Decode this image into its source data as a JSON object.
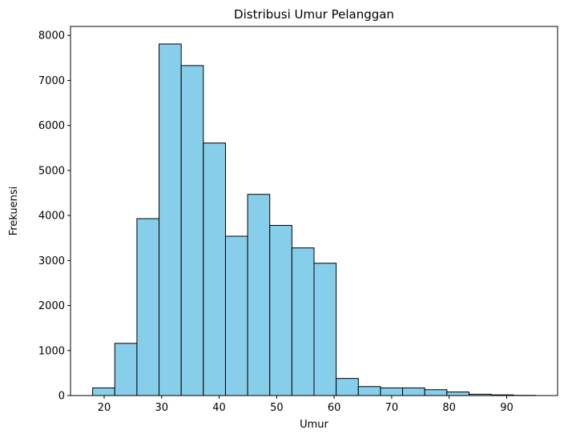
{
  "chart_data": {
    "type": "bar",
    "title": "Distribusi Umur Pelanggan",
    "xlabel": "Umur",
    "ylabel": "Frekuensi",
    "bin_edges": [
      18,
      21.85,
      25.7,
      29.55,
      33.4,
      37.25,
      41.1,
      44.95,
      48.8,
      52.65,
      56.5,
      60.35,
      64.2,
      68.05,
      71.9,
      75.75,
      79.6,
      83.45,
      87.3,
      91.15,
      95
    ],
    "values": [
      170,
      1160,
      3930,
      7810,
      7330,
      5610,
      3540,
      4470,
      3780,
      3280,
      2940,
      380,
      200,
      170,
      170,
      130,
      80,
      30,
      15,
      5
    ],
    "xlim": [
      14.15,
      98.85
    ],
    "ylim": [
      0,
      8200
    ],
    "x_ticks": [
      20,
      30,
      40,
      50,
      60,
      70,
      80,
      90
    ],
    "y_ticks": [
      0,
      1000,
      2000,
      3000,
      4000,
      5000,
      6000,
      7000,
      8000
    ],
    "bar_color": "#87CEEB",
    "edge_color": "#000000",
    "grid": false
  }
}
